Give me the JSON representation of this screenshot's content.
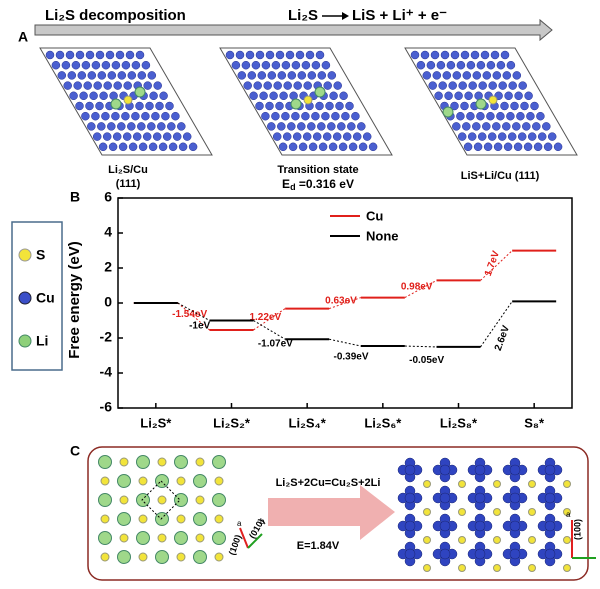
{
  "panel_a": {
    "label": "A",
    "header_left": "Li₂S decomposition",
    "header_reactant": "Li₂S",
    "header_products": "LiS + Li⁺ + e⁻",
    "captions": [
      [
        "Li₂S/Cu",
        "(111)"
      ],
      [
        "Transition state",
        "E",
        "d",
        " =0.316 eV"
      ],
      [
        "LiS+Li/Cu (111)"
      ]
    ]
  },
  "panel_b_label": "B",
  "element_legend": [
    "S",
    "Cu",
    "Li"
  ],
  "chart_data": {
    "type": "step",
    "ylabel": "Free energy (eV)",
    "categories": [
      "Li₂S*",
      "Li₂S₂*",
      "Li₂S₄*",
      "Li₂S₆*",
      "Li₂S₈*",
      "S₈*"
    ],
    "series": [
      {
        "name": "Cu",
        "color": "#e0201b",
        "values": [
          0,
          -1.54,
          -0.32,
          0.31,
          1.29,
          2.99
        ],
        "step_labels": [
          "-1.54eV",
          "1.22eV",
          "0.63eV",
          "0.98eV",
          "1.7eV"
        ]
      },
      {
        "name": "None",
        "color": "#000000",
        "values": [
          0,
          -1.0,
          -2.07,
          -2.46,
          -2.51,
          0.09
        ],
        "step_labels": [
          "-1eV",
          "-1.07eV",
          "-0.39eV",
          "-0.05eV",
          "2.6eV"
        ]
      }
    ],
    "ylim": [
      -6,
      6
    ],
    "yticks": [
      -6,
      -4,
      -2,
      0,
      2,
      4,
      6
    ],
    "legend": "top-center"
  },
  "panel_c": {
    "label": "C",
    "reaction": "Li₂S+2Cu=Cu₂S+2Li",
    "energy": "E=1.84V",
    "axes_left": [
      "(100)",
      "(010)",
      "a",
      "b"
    ],
    "axes_right": [
      "(100)",
      "a"
    ]
  }
}
